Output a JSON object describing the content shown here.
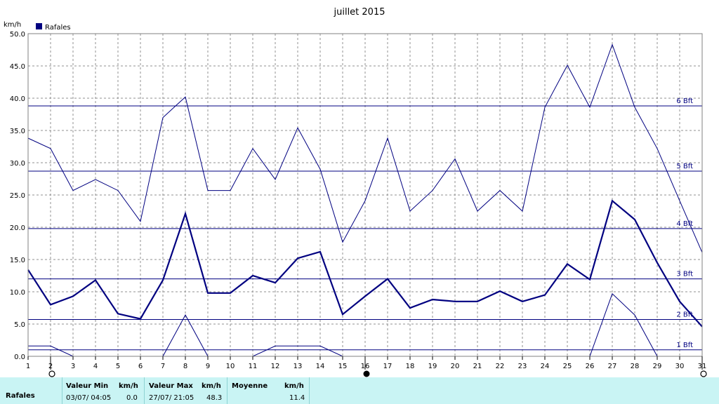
{
  "chart_data": {
    "type": "line",
    "title": "juillet 2015",
    "ylabel": "km/h",
    "ylim": [
      0,
      50
    ],
    "yticks": [
      "0.0",
      "5.0",
      "10.0",
      "15.0",
      "20.0",
      "25.0",
      "30.0",
      "35.0",
      "40.0",
      "45.0",
      "50.0"
    ],
    "x": [
      1,
      2,
      3,
      4,
      5,
      6,
      7,
      8,
      9,
      10,
      11,
      12,
      13,
      14,
      15,
      16,
      17,
      18,
      19,
      20,
      21,
      22,
      23,
      24,
      25,
      26,
      27,
      28,
      29,
      30,
      31
    ],
    "legend": [
      {
        "name": "Rafales",
        "color": "#000080"
      }
    ],
    "grid": true,
    "series": [
      {
        "name": "Rafales",
        "role": "max",
        "color": "#000080",
        "values": [
          33.8,
          32.2,
          25.7,
          27.4,
          25.7,
          20.9,
          37.0,
          40.2,
          25.7,
          25.7,
          32.2,
          27.4,
          35.4,
          29.0,
          17.7,
          24.1,
          33.8,
          22.5,
          25.7,
          30.6,
          22.5,
          25.7,
          22.5,
          38.6,
          45.1,
          38.6,
          48.3,
          38.6,
          32.2,
          24.1,
          16.1
        ]
      },
      {
        "name": "Rafales",
        "role": "avg",
        "color": "#000080",
        "values": [
          13.4,
          8.0,
          9.3,
          11.8,
          6.6,
          5.8,
          11.8,
          22.1,
          9.8,
          9.8,
          12.5,
          11.4,
          15.2,
          16.2,
          6.5,
          9.3,
          12.0,
          7.5,
          8.8,
          8.5,
          8.5,
          10.1,
          8.5,
          9.5,
          14.3,
          11.9,
          24.1,
          21.2,
          14.5,
          8.5,
          4.6
        ]
      },
      {
        "name": "Rafales",
        "role": "min",
        "color": "#000080",
        "values": [
          1.6,
          1.6,
          0.0,
          0.0,
          0.0,
          0.0,
          0.0,
          6.4,
          0.0,
          0.0,
          0.0,
          1.6,
          1.6,
          1.6,
          0.0,
          0.0,
          0.0,
          0.0,
          0.0,
          0.0,
          0.0,
          0.0,
          0.0,
          0.0,
          0.0,
          0.0,
          9.7,
          6.4,
          0.0,
          0.0,
          0.0
        ]
      }
    ],
    "reference_lines": [
      {
        "label": "1 Bft",
        "value": 1.0
      },
      {
        "label": "2 Bft",
        "value": 5.7
      },
      {
        "label": "3 Bft",
        "value": 12.0
      },
      {
        "label": "4 Bft",
        "value": 19.8
      },
      {
        "label": "5 Bft",
        "value": 28.7
      },
      {
        "label": "6 Bft",
        "value": 38.8
      }
    ],
    "moon_phases": [
      {
        "day": 2,
        "phase": "full-moon",
        "glyph": "○"
      },
      {
        "day": 16,
        "phase": "new-moon",
        "glyph": "●"
      },
      {
        "day": 31,
        "phase": "full-moon",
        "glyph": "○"
      }
    ]
  },
  "stats": {
    "series_label": "Rafales",
    "min_header": "Valeur Min",
    "min_unit": "km/h",
    "min_date": "03/07/  04:05",
    "min_value": "0.0",
    "max_header": "Valeur Max",
    "max_unit": "km/h",
    "max_date": "27/07/  21:05",
    "max_value": "48.3",
    "avg_header": "Moyenne",
    "avg_unit": "km/h",
    "avg_value": "11.4"
  }
}
